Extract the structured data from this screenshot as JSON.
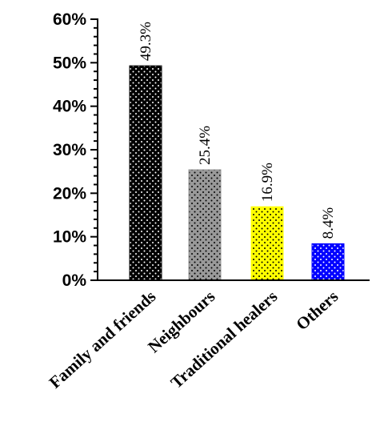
{
  "chart_data": {
    "type": "bar",
    "categories": [
      "Family and friends",
      "Neighbours",
      "Traditional healers",
      "Others"
    ],
    "values": [
      49.3,
      25.4,
      16.9,
      8.4
    ],
    "data_labels": [
      "49.3%",
      "25.4%",
      "16.9%",
      "8.4%"
    ],
    "y_tick_labels": [
      "0%",
      "10%",
      "20%",
      "30%",
      "40%",
      "50%",
      "60%"
    ],
    "y_ticks": [
      0,
      10,
      20,
      30,
      40,
      50,
      60
    ],
    "ylim": [
      0,
      60
    ],
    "colors": [
      "#000000",
      "#999999",
      "#ffff00",
      "#0000ff"
    ],
    "dot_colors": [
      "#ffffff",
      "#000000",
      "#000000",
      "#ffffff"
    ],
    "grid": false,
    "legend": "none",
    "pattern": "dotted"
  }
}
